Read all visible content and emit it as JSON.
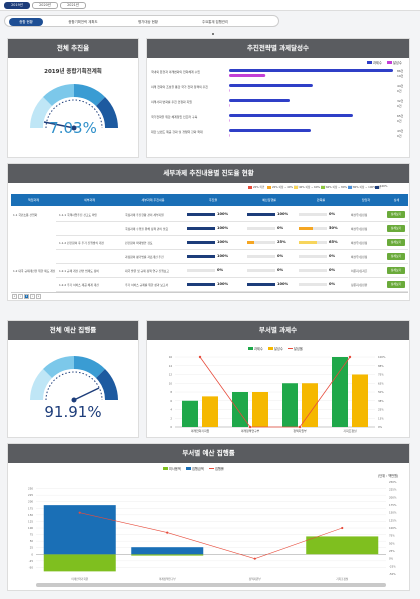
{
  "year_tabs": [
    "2019년",
    "2020년",
    "2021년"
  ],
  "sub_tabs": [
    "종합 현황",
    "종합기획전략 계획도",
    "평가대상 현황",
    "주요통계 집행관리"
  ],
  "progress_panel": {
    "title": "전체 추진율",
    "plan_name": "2019년 종합기획전계획",
    "value": "7.03%"
  },
  "task_panel": {
    "title": "추진전략별 과제달성수",
    "legend": [
      "과제수",
      "달성수"
    ],
    "rows": [
      {
        "label": "국내외 환경과 미래변화의 전략체계 수립",
        "v1": "86건",
        "v2": "19건"
      },
      {
        "label": "미래 전략의 조성을 통한 국가 전략 정책의 추진",
        "v1": "44건",
        "v2": "0건"
      },
      {
        "label": "미래사회 변화를 추진 안정화 지원",
        "v1": "32건",
        "v2": "0건"
      },
      {
        "label": "국가전략을 위한 체계정립 인프라 구축",
        "v1": "65건",
        "v2": "0건"
      },
      {
        "label": "대한 브랜드 제공 강화 및 경쟁력 강화 확대",
        "v1": "43건",
        "v2": "0건"
      }
    ]
  },
  "detail_panel": {
    "title": "세부과제 추진내용별 진도율 현황",
    "legend": [
      "20% 미만",
      "20% 이상 ~ 40% 미만",
      "40% 이상 ~ 60% 미만",
      "60% 이상 ~ 80% 미만",
      "80% 이상 ~ 100% 미만",
      "100%"
    ],
    "headers": [
      "책임과제",
      "세부과제",
      "세부과제 추진내용",
      "추진율",
      "예산집행률",
      "만족률",
      "담당자",
      "상세"
    ],
    "rows": [
      {
        "c1": "1.1 국민소통 산업화",
        "c2": "1.1.1 국책사업추진 선고도 확인",
        "c3": "국정과제 추진현황 관리 세부지원",
        "p1": "100%",
        "p2": "100%",
        "p3": "0%",
        "who": "박선우/김민정",
        "btn": "상세보기"
      },
      {
        "c1": "",
        "c2": "",
        "c3": "국정과제 수행을 위해 정책 관리 필요",
        "p1": "100%",
        "p2": "0%",
        "p3": "50%",
        "who": "박선우/김민정",
        "btn": "상세보기"
      },
      {
        "c1": "",
        "c2": "1.1.2 민간참여 후 추가 진행방식 개선",
        "c3": "민간참여 확대방안 검토",
        "p1": "100%",
        "p2": "25%",
        "p3": "65%",
        "who": "박선우/김민정",
        "btn": "상세보기"
      },
      {
        "c1": "",
        "c2": "",
        "c3": "과정참여 평가법률 자료개선 추진",
        "p1": "100%",
        "p2": "0%",
        "p3": "0%",
        "who": "박선우/김민정",
        "btn": "상세보기"
      },
      {
        "c1": "1.2 대국 규제개선을 위한 제도 개선",
        "c2": "1.2.1 규제 개선 관련 법제도 정비",
        "c3": "대국 발굴 및 규제 정책 연구 진행보고",
        "p1": "0%",
        "p2": "0%",
        "p3": "0%",
        "who": "이은지/김지훈",
        "btn": "상세보기"
      },
      {
        "c1": "",
        "c2": "1.2.2 추가 서비스 제공 체계 개선",
        "c3": "추가 서비스 규제를 위한 성과 보고서",
        "p1": "100%",
        "p2": "100%",
        "p3": "0%",
        "who": "정은지/김민환",
        "btn": "상세보기"
      }
    ],
    "pager": [
      "«",
      "‹",
      "1",
      "›",
      "»"
    ]
  },
  "budget_panel": {
    "title": "전체 예산 집행률",
    "value": "91.91%"
  },
  "dept_panel": {
    "title": "부서별 과제수",
    "legend": [
      "과제수",
      "달성수",
      "달성율"
    ],
    "categories": [
      "미래전략기획원",
      "미래정책연구부",
      "정책지원부",
      "기획조정실"
    ]
  },
  "budget_dept_panel": {
    "title": "부서별 예산 집행률",
    "legend": [
      "미사용액",
      "집행금액",
      "집행률"
    ],
    "unit": "(단위 : 백만원)",
    "x_labels": [
      "미래전략기획원",
      "미래정책연구부",
      "정책지원부",
      "기획조정실"
    ]
  },
  "colors": {
    "header": "#5a5c60",
    "blue": "#1a6fb6",
    "navy": "#1d3d7a",
    "green": "#7fbf1f",
    "orange": "#f5a623",
    "red": "#e74c3c",
    "gauge_text": "#2e8fc9"
  },
  "chart_data": [
    {
      "type": "bar",
      "title": "추진전략별 과제달성수",
      "categories": [
        "국내외 환경과 미래변화의 전략체계 수립",
        "미래 전략의 조성을 통한 국가 전략 정책의 추진",
        "미래사회 변화를 추진 안정화 지원",
        "국가전략을 위한 체계정립 인프라 구축",
        "대한 브랜드 제공 강화 및 경쟁력 강화 확대"
      ],
      "series": [
        {
          "name": "과제수",
          "values": [
            86,
            44,
            32,
            65,
            43
          ]
        },
        {
          "name": "달성수",
          "values": [
            19,
            0,
            0,
            0,
            0
          ]
        }
      ]
    },
    {
      "type": "bar",
      "title": "부서별 과제수",
      "categories": [
        "미래전략기획원",
        "미래정책연구부",
        "정책지원부",
        "기획조정실"
      ],
      "series": [
        {
          "name": "과제수",
          "values": [
            6,
            8,
            10,
            16
          ]
        },
        {
          "name": "달성수",
          "values": [
            7,
            8,
            10,
            12
          ]
        },
        {
          "name": "달성율",
          "values": [
            100,
            0,
            0,
            100
          ]
        }
      ]
    },
    {
      "type": "bar",
      "title": "부서별 예산 집행률",
      "categories": [
        "미래전략기획원",
        "미래정책연구부",
        "정책지원부",
        "기획조정실"
      ],
      "series": [
        {
          "name": "미사용액",
          "values": [
            -65,
            -5,
            0,
            68
          ]
        },
        {
          "name": "집행금액",
          "values": [
            187,
            27,
            0,
            0
          ]
        },
        {
          "name": "집행률",
          "values": [
            150,
            85,
            0,
            100
          ]
        }
      ],
      "ylim": [
        -75,
        275
      ]
    }
  ]
}
